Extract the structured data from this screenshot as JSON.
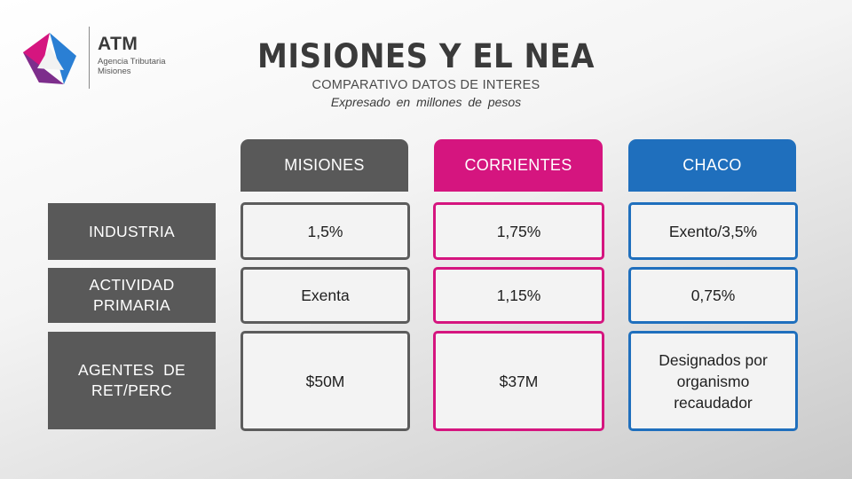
{
  "logo": {
    "brand": "ATM",
    "subtitle_line1": "Agencia Tributaria",
    "subtitle_line2": "Misiones"
  },
  "title": "MISIONES Y EL NEA",
  "subtitle": "COMPARATIVO DATOS DE INTERES",
  "note": "Expresado en millones de pesos",
  "colors": {
    "misiones": "#595959",
    "corrientes": "#d5157f",
    "chaco": "#1f6fbd"
  },
  "columns": [
    "MISIONES",
    "CORRIENTES",
    "CHACO"
  ],
  "rows": [
    {
      "label_line1": "INDUSTRIA",
      "label_line2": "",
      "misiones": "1,5%",
      "corrientes": "1,75%",
      "chaco_line1": "Exento/3,5%",
      "chaco_line2": "",
      "chaco_line3": ""
    },
    {
      "label_line1": "ACTIVIDAD",
      "label_line2": "PRIMARIA",
      "misiones": "Exenta",
      "corrientes": "1,15%",
      "chaco_line1": "0,75%",
      "chaco_line2": "",
      "chaco_line3": ""
    },
    {
      "label_line1": "AGENTES  DE",
      "label_line2": "RET/PERC",
      "misiones": "$50M",
      "corrientes": "$37M",
      "chaco_line1": "Designados por",
      "chaco_line2": "organismo",
      "chaco_line3": "recaudador"
    }
  ]
}
